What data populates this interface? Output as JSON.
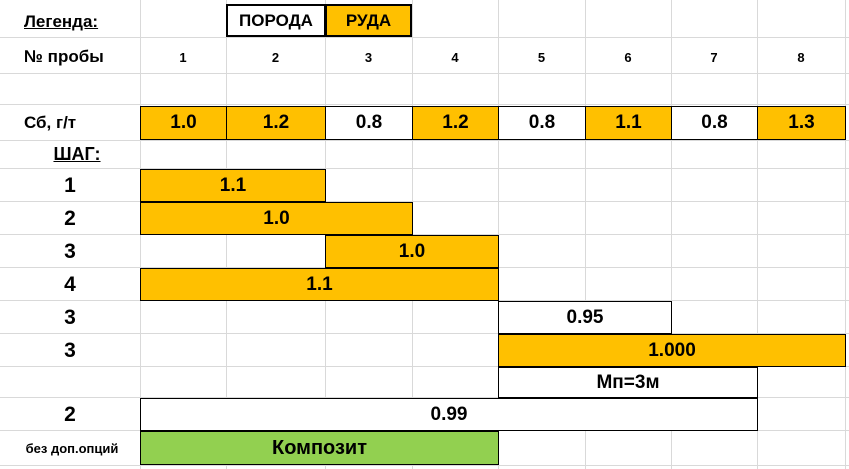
{
  "legend": {
    "label": "Легенда:",
    "rock": "ПОРОДА",
    "ore": "РУДА"
  },
  "sample_row": {
    "label": "№ пробы",
    "numbers": [
      "1",
      "2",
      "3",
      "4",
      "5",
      "6",
      "7",
      "8"
    ]
  },
  "grade_row": {
    "label": "Сб, г/т",
    "values": [
      "1.0",
      "1.2",
      "0.8",
      "1.2",
      "0.8",
      "1.1",
      "0.8",
      "1.3"
    ],
    "types": [
      "ore",
      "ore",
      "rock",
      "ore",
      "rock",
      "ore",
      "rock",
      "ore"
    ]
  },
  "steps_header": "ШАГ:",
  "rows": [
    {
      "step": "1",
      "value": "1.1"
    },
    {
      "step": "2",
      "value": "1.0"
    },
    {
      "step": "3",
      "value": "1.0"
    },
    {
      "step": "4",
      "value": "1.1"
    },
    {
      "step": "3",
      "value": "0.95"
    },
    {
      "step": "3",
      "value": "1.000"
    },
    {
      "step": "",
      "value": "Мп=3м"
    },
    {
      "step": "2",
      "value": "0.99"
    },
    {
      "step": "без доп.опций",
      "value": "Композит"
    }
  ],
  "colors": {
    "ore": "#ffc000",
    "rock": "#ffffff",
    "composite": "#92d050",
    "grid": "#d9d9d9"
  }
}
